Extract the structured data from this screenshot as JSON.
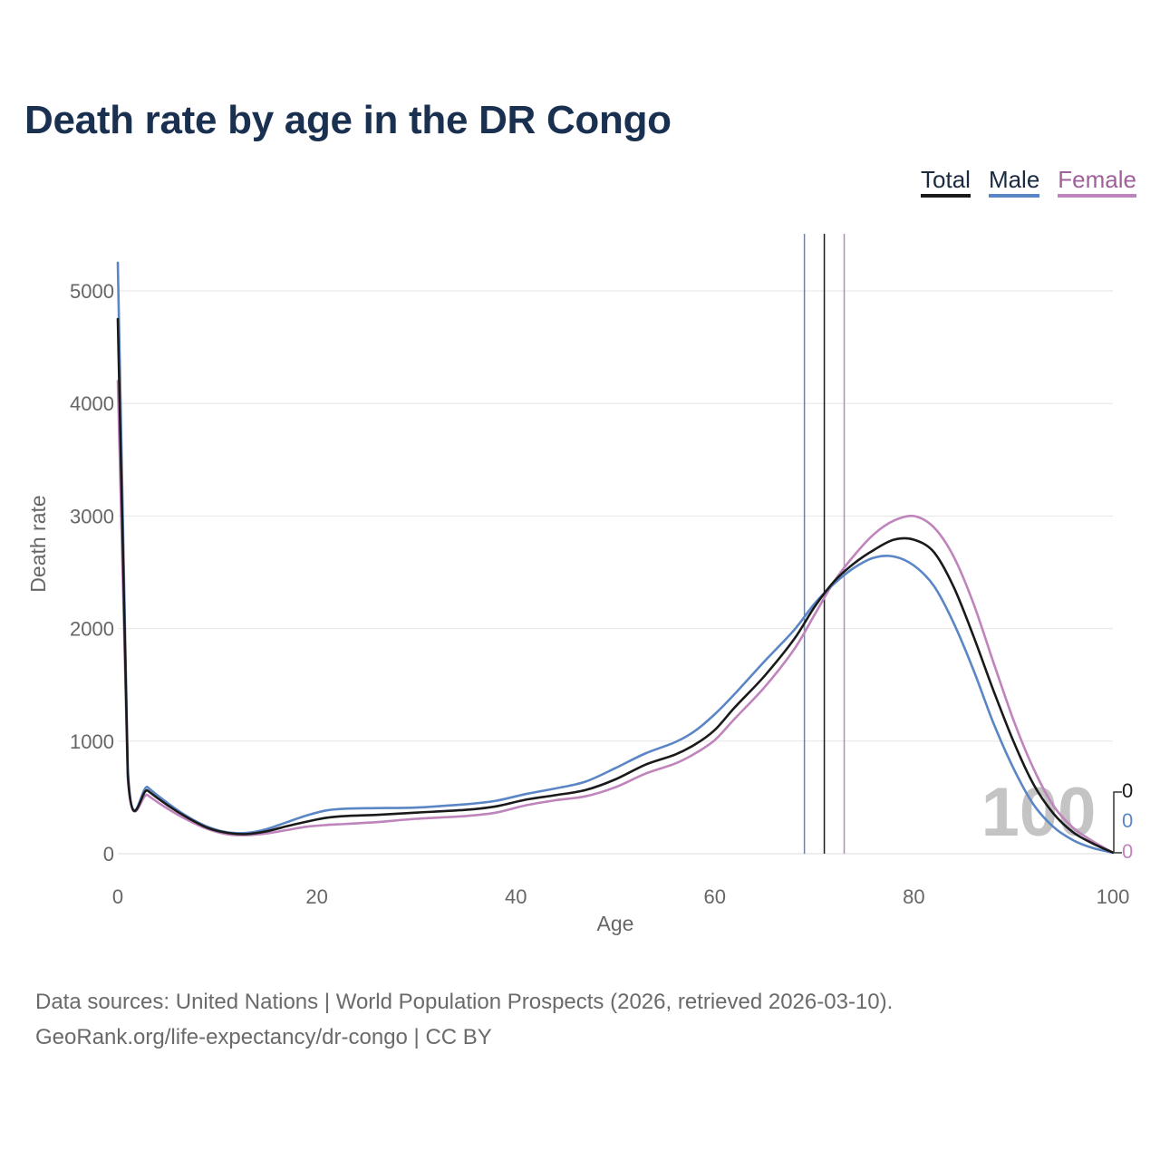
{
  "title": "Death rate by age in the DR Congo",
  "legend": {
    "total": "Total",
    "male": "Male",
    "female": "Female"
  },
  "colors": {
    "total": "#1a1a1a",
    "male": "#5b86c6",
    "female": "#c084bd",
    "grid": "#e6e6e6",
    "title": "#1a3050"
  },
  "watermark": "100",
  "end_labels": {
    "total": "0",
    "male": "0",
    "female": "0"
  },
  "footer": {
    "line1": "Data sources: United Nations | World Population Prospects (2026, retrieved 2026-03-10).",
    "line2": "GeoRank.org/life-expectancy/dr-congo | CC BY"
  },
  "chart_data": {
    "type": "line",
    "title": "Death rate by age in the DR Congo",
    "xlabel": "Age",
    "ylabel": "Death rate",
    "xlim": [
      0,
      100
    ],
    "ylim": [
      0,
      5000
    ],
    "xticks": [
      0,
      20,
      40,
      60,
      80,
      100
    ],
    "yticks": [
      0,
      1000,
      2000,
      3000,
      4000,
      5000
    ],
    "grid": true,
    "legend_position": "top-right",
    "reference_lines": [
      {
        "series": "Male",
        "x": 69
      },
      {
        "series": "Total",
        "x": 71
      },
      {
        "series": "Female",
        "x": 73
      }
    ],
    "series": [
      {
        "name": "Total",
        "color": "#1a1a1a",
        "points": [
          [
            0,
            4750
          ],
          [
            1,
            710
          ],
          [
            3,
            560
          ],
          [
            5,
            430
          ],
          [
            7,
            320
          ],
          [
            9,
            230
          ],
          [
            11,
            185
          ],
          [
            13,
            175
          ],
          [
            15,
            200
          ],
          [
            17,
            245
          ],
          [
            19,
            285
          ],
          [
            21,
            320
          ],
          [
            23,
            335
          ],
          [
            26,
            345
          ],
          [
            30,
            365
          ],
          [
            35,
            390
          ],
          [
            38,
            420
          ],
          [
            41,
            480
          ],
          [
            44,
            520
          ],
          [
            47,
            565
          ],
          [
            50,
            660
          ],
          [
            53,
            790
          ],
          [
            56,
            880
          ],
          [
            58,
            970
          ],
          [
            60,
            1100
          ],
          [
            62,
            1300
          ],
          [
            65,
            1580
          ],
          [
            68,
            1910
          ],
          [
            70,
            2190
          ],
          [
            72,
            2420
          ],
          [
            74,
            2580
          ],
          [
            76,
            2700
          ],
          [
            78,
            2790
          ],
          [
            80,
            2790
          ],
          [
            82,
            2680
          ],
          [
            84,
            2370
          ],
          [
            86,
            1930
          ],
          [
            88,
            1450
          ],
          [
            90,
            1000
          ],
          [
            92,
            620
          ],
          [
            94,
            360
          ],
          [
            96,
            190
          ],
          [
            98,
            90
          ],
          [
            100,
            10
          ]
        ]
      },
      {
        "name": "Male",
        "color": "#5b86c6",
        "points": [
          [
            0,
            5250
          ],
          [
            1,
            750
          ],
          [
            3,
            590
          ],
          [
            5,
            450
          ],
          [
            7,
            330
          ],
          [
            9,
            240
          ],
          [
            11,
            190
          ],
          [
            13,
            185
          ],
          [
            15,
            220
          ],
          [
            17,
            280
          ],
          [
            19,
            340
          ],
          [
            21,
            385
          ],
          [
            23,
            400
          ],
          [
            26,
            405
          ],
          [
            30,
            410
          ],
          [
            35,
            440
          ],
          [
            38,
            470
          ],
          [
            41,
            530
          ],
          [
            44,
            580
          ],
          [
            47,
            640
          ],
          [
            50,
            760
          ],
          [
            53,
            890
          ],
          [
            56,
            990
          ],
          [
            58,
            1090
          ],
          [
            60,
            1240
          ],
          [
            62,
            1420
          ],
          [
            65,
            1710
          ],
          [
            68,
            1990
          ],
          [
            70,
            2220
          ],
          [
            72,
            2400
          ],
          [
            74,
            2540
          ],
          [
            76,
            2630
          ],
          [
            78,
            2640
          ],
          [
            80,
            2560
          ],
          [
            82,
            2380
          ],
          [
            84,
            2050
          ],
          [
            86,
            1630
          ],
          [
            88,
            1160
          ],
          [
            90,
            760
          ],
          [
            92,
            440
          ],
          [
            94,
            240
          ],
          [
            96,
            120
          ],
          [
            98,
            50
          ],
          [
            100,
            10
          ]
        ]
      },
      {
        "name": "Female",
        "color": "#c084bd",
        "points": [
          [
            0,
            4200
          ],
          [
            1,
            670
          ],
          [
            3,
            520
          ],
          [
            5,
            400
          ],
          [
            7,
            300
          ],
          [
            9,
            220
          ],
          [
            11,
            172
          ],
          [
            13,
            165
          ],
          [
            15,
            180
          ],
          [
            17,
            210
          ],
          [
            19,
            240
          ],
          [
            21,
            255
          ],
          [
            23,
            265
          ],
          [
            26,
            280
          ],
          [
            30,
            310
          ],
          [
            35,
            335
          ],
          [
            38,
            365
          ],
          [
            41,
            430
          ],
          [
            44,
            475
          ],
          [
            47,
            510
          ],
          [
            50,
            590
          ],
          [
            53,
            710
          ],
          [
            56,
            800
          ],
          [
            58,
            890
          ],
          [
            60,
            1010
          ],
          [
            62,
            1200
          ],
          [
            65,
            1480
          ],
          [
            68,
            1820
          ],
          [
            70,
            2120
          ],
          [
            72,
            2420
          ],
          [
            74,
            2650
          ],
          [
            76,
            2840
          ],
          [
            78,
            2960
          ],
          [
            80,
            3000
          ],
          [
            82,
            2900
          ],
          [
            84,
            2640
          ],
          [
            86,
            2220
          ],
          [
            88,
            1700
          ],
          [
            90,
            1190
          ],
          [
            92,
            760
          ],
          [
            94,
            430
          ],
          [
            96,
            230
          ],
          [
            98,
            110
          ],
          [
            100,
            10
          ]
        ]
      }
    ]
  }
}
